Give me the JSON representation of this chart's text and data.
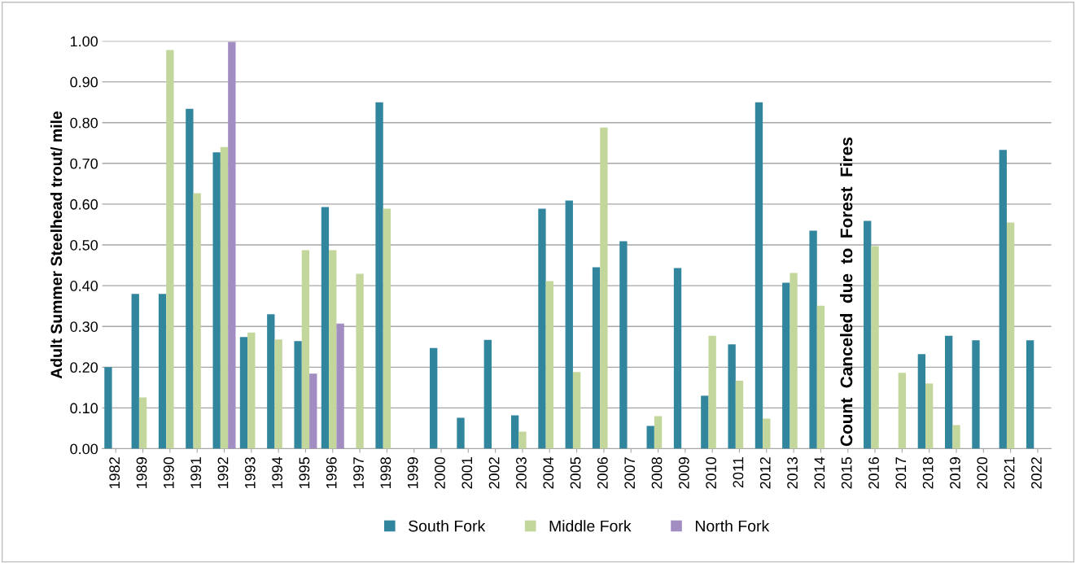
{
  "chart_data": {
    "type": "bar",
    "ylabel": "Adult Summer Steelhead trout/ mile",
    "categories": [
      "1982",
      "1989",
      "1990",
      "1991",
      "1992",
      "1993",
      "1994",
      "1995",
      "1996",
      "1997",
      "1998",
      "1999",
      "2000",
      "2001",
      "2002",
      "2003",
      "2004",
      "2005",
      "2006",
      "2007",
      "2008",
      "2009",
      "2010",
      "2011",
      "2012",
      "2013",
      "2014",
      "2015",
      "2016",
      "2017",
      "2018",
      "2019",
      "2020",
      "2021",
      "2022"
    ],
    "series": [
      {
        "name": "South Fork",
        "color": "#31859c",
        "values": [
          0.2,
          0.38,
          0.38,
          0.834,
          0.727,
          0.274,
          0.33,
          0.264,
          0.593,
          null,
          0.85,
          null,
          0.247,
          0.076,
          0.267,
          0.082,
          0.589,
          0.609,
          0.445,
          0.509,
          0.056,
          0.443,
          0.13,
          0.256,
          0.85,
          0.407,
          0.535,
          null,
          0.559,
          null,
          0.232,
          0.277,
          0.266,
          0.733,
          0.266
        ]
      },
      {
        "name": "Middle Fork",
        "color": "#c3d69b",
        "values": [
          null,
          0.126,
          0.978,
          0.627,
          0.74,
          0.285,
          0.268,
          0.487,
          0.487,
          0.429,
          0.589,
          null,
          null,
          null,
          null,
          0.042,
          0.411,
          0.188,
          0.788,
          null,
          0.08,
          null,
          0.277,
          0.167,
          0.074,
          0.431,
          0.351,
          null,
          0.497,
          0.186,
          0.16,
          0.058,
          null,
          0.555,
          null
        ]
      },
      {
        "name": "North Fork",
        "color": "#a18dc2",
        "values": [
          null,
          null,
          null,
          null,
          0.998,
          null,
          null,
          0.184,
          0.307,
          null,
          null,
          null,
          null,
          null,
          null,
          null,
          null,
          null,
          null,
          null,
          null,
          null,
          null,
          null,
          null,
          null,
          null,
          null,
          null,
          null,
          null,
          null,
          null,
          null,
          null
        ]
      }
    ],
    "ylim": [
      0,
      1.0
    ],
    "yticks": [
      {
        "value": 0,
        "label": "0.00"
      },
      {
        "value": 0.1,
        "label": "0.10"
      },
      {
        "value": 0.2,
        "label": "0.20"
      },
      {
        "value": 0.3,
        "label": "0.30"
      },
      {
        "value": 0.4,
        "label": "0.40"
      },
      {
        "value": 0.5,
        "label": "0.50"
      },
      {
        "value": 0.6,
        "label": "0.60"
      },
      {
        "value": 0.7,
        "label": "0.70"
      },
      {
        "value": 0.8,
        "label": "0.80"
      },
      {
        "value": 0.9,
        "label": "0.90"
      },
      {
        "value": 1.0,
        "label": "1.00"
      }
    ],
    "grid": "y",
    "legend": "bottom",
    "annotations": [
      "Count  Canceled  due  to  Forest  Fires"
    ]
  }
}
